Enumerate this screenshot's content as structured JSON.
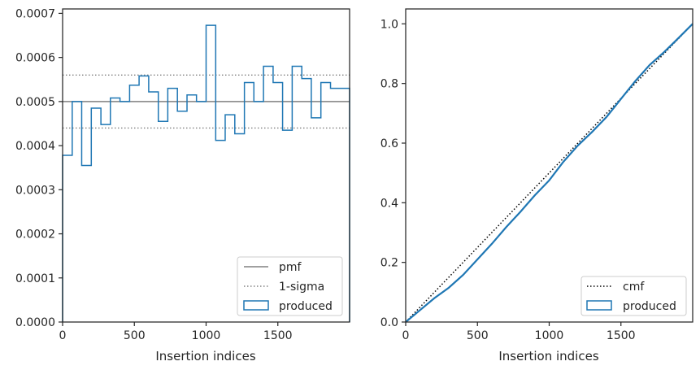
{
  "chart_data": [
    {
      "type": "histogram-step",
      "xlabel": "Insertion indices",
      "ylabel": "",
      "xlim": [
        0,
        2000
      ],
      "ylim": [
        0,
        0.00071
      ],
      "xticks": [
        0,
        500,
        1000,
        1500
      ],
      "xtick_labels": [
        "0",
        "500",
        "1000",
        "1500"
      ],
      "yticks": [
        0,
        0.0001,
        0.0002,
        0.0003,
        0.0004,
        0.0005,
        0.0006,
        0.0007
      ],
      "ytick_labels": [
        "0.0000",
        "0.0001",
        "0.0002",
        "0.0003",
        "0.0004",
        "0.0005",
        "0.0006",
        "0.0007"
      ],
      "pmf": 0.0005,
      "sigma_lines": [
        0.00044,
        0.00056
      ],
      "bin_edges": [
        0,
        67,
        133,
        200,
        267,
        333,
        400,
        467,
        533,
        600,
        667,
        733,
        800,
        867,
        933,
        1000,
        1067,
        1133,
        1200,
        1267,
        1333,
        1400,
        1467,
        1533,
        1600,
        1667,
        1733,
        1800,
        1867,
        1933,
        2000
      ],
      "counts": [
        0.000378,
        0.0005,
        0.000355,
        0.000485,
        0.000448,
        0.000508,
        0.0005,
        0.000537,
        0.000558,
        0.000522,
        0.000455,
        0.00053,
        0.000478,
        0.000515,
        0.0005,
        0.000673,
        0.000412,
        0.00047,
        0.000427,
        0.000543,
        0.0005,
        0.00058,
        0.000543,
        0.000435,
        0.00058,
        0.000552,
        0.000463,
        0.000543,
        0.00053,
        0.00053
      ],
      "legend": {
        "position": "lower right",
        "entries": [
          {
            "label": "pmf",
            "style": "solid-line",
            "color": "#808080"
          },
          {
            "label": "1-sigma",
            "style": "dotted-line",
            "color": "#808080"
          },
          {
            "label": "produced",
            "style": "box",
            "color": "#1f77b4"
          }
        ]
      }
    },
    {
      "type": "line",
      "xlabel": "Insertion indices",
      "ylabel": "",
      "xlim": [
        0,
        2000
      ],
      "ylim": [
        0,
        1.05
      ],
      "xticks": [
        0,
        500,
        1000,
        1500
      ],
      "xtick_labels": [
        "0",
        "500",
        "1000",
        "1500"
      ],
      "yticks": [
        0,
        0.2,
        0.4,
        0.6,
        0.8,
        1.0
      ],
      "ytick_labels": [
        "0.0",
        "0.2",
        "0.4",
        "0.6",
        "0.8",
        "1.0"
      ],
      "series": [
        {
          "name": "cmf",
          "style": "dotted",
          "color": "#000000",
          "x": [
            0,
            2000
          ],
          "y": [
            0,
            1.0
          ]
        },
        {
          "name": "produced",
          "style": "solid",
          "color": "#1f77b4",
          "x": [
            0,
            100,
            200,
            300,
            400,
            500,
            600,
            700,
            800,
            900,
            1000,
            1100,
            1200,
            1300,
            1400,
            1500,
            1600,
            1700,
            1800,
            1900,
            2000
          ],
          "y": [
            0,
            0.04,
            0.08,
            0.115,
            0.158,
            0.21,
            0.262,
            0.318,
            0.37,
            0.425,
            0.475,
            0.538,
            0.592,
            0.638,
            0.688,
            0.748,
            0.808,
            0.862,
            0.905,
            0.952,
            1.0
          ]
        }
      ],
      "legend": {
        "position": "lower right",
        "entries": [
          {
            "label": "cmf",
            "style": "dotted-line",
            "color": "#000000"
          },
          {
            "label": "produced",
            "style": "box",
            "color": "#1f77b4"
          }
        ]
      }
    }
  ]
}
